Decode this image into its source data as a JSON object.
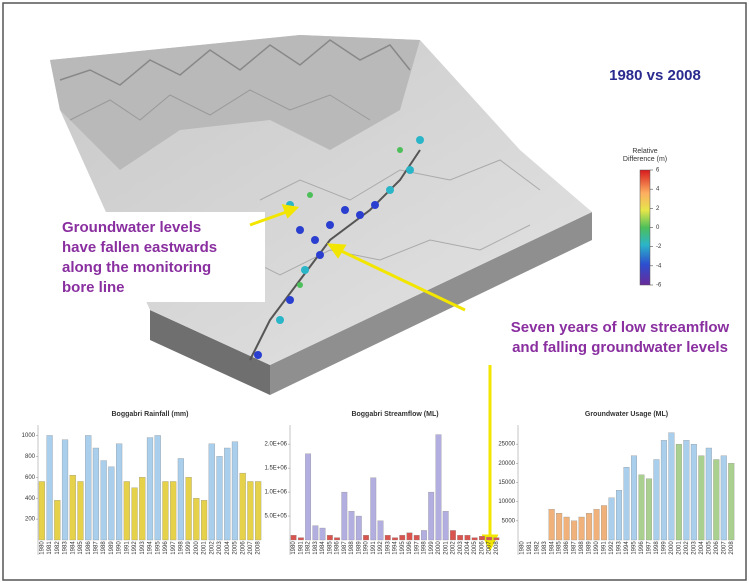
{
  "title": "1980 vs 2008",
  "annotations": [
    {
      "lines": [
        "Groundwater levels",
        "have fallen eastwards",
        "along the monitoring",
        "bore line"
      ]
    },
    {
      "lines": [
        "Seven years of low streamflow",
        "and falling groundwater levels"
      ]
    }
  ],
  "legend": {
    "title": [
      "Relative",
      "Difference (m)"
    ],
    "lim": [
      -6,
      6
    ],
    "ticks": [
      6,
      4,
      2,
      0,
      -2,
      -4,
      -6
    ]
  },
  "chart_data": [
    {
      "type": "bar",
      "title": "Boggabri Rainfall (mm)",
      "categories": [
        "1980",
        "1981",
        "1982",
        "1983",
        "1984",
        "1985",
        "1986",
        "1987",
        "1988",
        "1989",
        "1990",
        "1991",
        "1992",
        "1993",
        "1994",
        "1995",
        "1996",
        "1997",
        "1998",
        "1999",
        "2000",
        "2001",
        "2002",
        "2003",
        "2004",
        "2005",
        "2006",
        "2007",
        "2008"
      ],
      "values": [
        560,
        1000,
        380,
        960,
        620,
        560,
        1000,
        880,
        760,
        700,
        920,
        560,
        500,
        600,
        980,
        1000,
        560,
        560,
        780,
        600,
        400,
        380,
        920,
        800,
        880,
        940,
        640,
        560,
        560
      ],
      "colors": [
        "#e6d24a",
        "#a9cfec",
        "#e6d24a",
        "#a9cfec",
        "#e6d24a",
        "#e6d24a",
        "#a9cfec",
        "#a9cfec",
        "#a9cfec",
        "#a9cfec",
        "#a9cfec",
        "#e6d24a",
        "#e6d24a",
        "#e6d24a",
        "#a9cfec",
        "#a9cfec",
        "#e6d24a",
        "#e6d24a",
        "#a9cfec",
        "#e6d24a",
        "#e6d24a",
        "#e6d24a",
        "#a9cfec",
        "#a9cfec",
        "#a9cfec",
        "#a9cfec",
        "#e6d24a",
        "#e6d24a",
        "#e6d24a"
      ],
      "ylim": [
        0,
        1100
      ],
      "yticks": [
        200,
        400,
        600,
        800,
        1000
      ]
    },
    {
      "type": "bar",
      "title": "Boggabri Streamflow (ML)",
      "categories": [
        "1980",
        "1981",
        "1982",
        "1983",
        "1984",
        "1985",
        "1986",
        "1987",
        "1988",
        "1989",
        "1990",
        "1991",
        "1992",
        "1993",
        "1994",
        "1995",
        "1996",
        "1997",
        "1998",
        "1999",
        "2000",
        "2001",
        "2002",
        "2003",
        "2004",
        "2005",
        "2006",
        "2007",
        "2008"
      ],
      "values": [
        100000,
        50000,
        1800000,
        300000,
        250000,
        100000,
        50000,
        1000000,
        600000,
        500000,
        100000,
        1300000,
        400000,
        100000,
        50000,
        100000,
        150000,
        100000,
        200000,
        1000000,
        2200000,
        600000,
        200000,
        100000,
        100000,
        50000,
        80000,
        60000,
        50000
      ],
      "colors": [
        "#d9534f",
        "#d9534f",
        "#b3aee0",
        "#b3aee0",
        "#b3aee0",
        "#d9534f",
        "#d9534f",
        "#b3aee0",
        "#b3aee0",
        "#b3aee0",
        "#d9534f",
        "#b3aee0",
        "#b3aee0",
        "#d9534f",
        "#d9534f",
        "#d9534f",
        "#d9534f",
        "#d9534f",
        "#b3aee0",
        "#b3aee0",
        "#b3aee0",
        "#b3aee0",
        "#d9534f",
        "#d9534f",
        "#d9534f",
        "#d9534f",
        "#d9534f",
        "#d9534f",
        "#d9534f"
      ],
      "ylim": [
        0,
        2400000
      ],
      "yticks": [
        {
          "value": 500000,
          "label": "5.0E+05"
        },
        {
          "value": 1000000,
          "label": "1.0E+06"
        },
        {
          "value": 1500000,
          "label": "1.5E+06"
        },
        {
          "value": 2000000,
          "label": "2.0E+06"
        }
      ]
    },
    {
      "type": "bar",
      "title": "Groundwater Usage (ML)",
      "categories": [
        "1980",
        "1981",
        "1982",
        "1983",
        "1984",
        "1985",
        "1986",
        "1987",
        "1988",
        "1989",
        "1990",
        "1991",
        "1992",
        "1993",
        "1994",
        "1995",
        "1996",
        "1997",
        "1998",
        "1999",
        "2000",
        "2001",
        "2002",
        "2003",
        "2004",
        "2005",
        "2006",
        "2007",
        "2008"
      ],
      "values": [
        0,
        0,
        0,
        0,
        8000,
        7000,
        6000,
        5000,
        6000,
        7000,
        8000,
        9000,
        11000,
        13000,
        19000,
        22000,
        17000,
        16000,
        21000,
        26000,
        28000,
        25000,
        26000,
        25000,
        22000,
        24000,
        21000,
        22000,
        20000
      ],
      "colors": [
        "#aaaaaa",
        "#aaaaaa",
        "#aaaaaa",
        "#aaaaaa",
        "#f0b27a",
        "#f0b27a",
        "#f0b27a",
        "#f0b27a",
        "#f0b27a",
        "#f0b27a",
        "#f0b27a",
        "#f0b27a",
        "#a9cfec",
        "#a9cfec",
        "#a9cfec",
        "#a9cfec",
        "#a9d08e",
        "#a9d08e",
        "#a9cfec",
        "#a9cfec",
        "#a9cfec",
        "#a9d08e",
        "#a9cfec",
        "#a9cfec",
        "#a9d08e",
        "#a9cfec",
        "#a9d08e",
        "#a9cfec",
        "#a9d08e"
      ],
      "ylim": [
        0,
        30000
      ],
      "yticks": [
        5000,
        10000,
        15000,
        20000,
        25000
      ]
    }
  ]
}
